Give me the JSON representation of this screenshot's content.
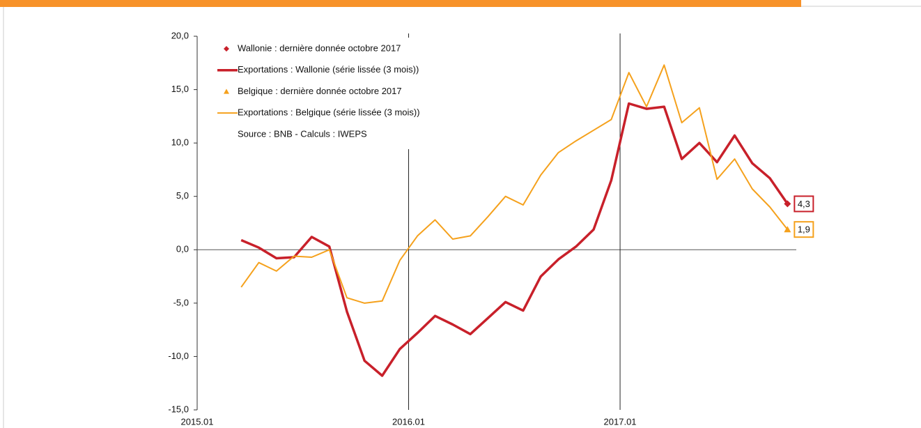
{
  "chart_data": {
    "type": "line",
    "categories": [
      "2015.01",
      null,
      null,
      null,
      null,
      null,
      null,
      null,
      null,
      null,
      null,
      null,
      "2016.01",
      null,
      null,
      null,
      null,
      null,
      null,
      null,
      null,
      null,
      null,
      null,
      "2017.01",
      null,
      null,
      null,
      null,
      null,
      null,
      null,
      null,
      null
    ],
    "series": [
      {
        "name": "Wallonie : dernière donnée octobre 2017",
        "color": "#c8202a",
        "marker": "diamond",
        "values": [
          null,
          null,
          null,
          null,
          null,
          null,
          null,
          null,
          null,
          null,
          null,
          null,
          null,
          null,
          null,
          null,
          null,
          null,
          null,
          null,
          null,
          null,
          null,
          null,
          null,
          null,
          null,
          null,
          null,
          null,
          null,
          null,
          null,
          4.3
        ],
        "value_labels": [
          null,
          null,
          null,
          null,
          null,
          null,
          null,
          null,
          null,
          null,
          null,
          null,
          null,
          null,
          null,
          null,
          null,
          null,
          null,
          null,
          null,
          null,
          null,
          null,
          null,
          null,
          null,
          null,
          null,
          null,
          null,
          null,
          null,
          "4,3"
        ]
      },
      {
        "name": "Exportations : Wallonie (série lissée (3 mois))",
        "color": "#c8202a",
        "width": 3.5,
        "values": [
          null,
          null,
          0.9,
          0.2,
          -0.8,
          -0.7,
          1.2,
          0.3,
          -5.8,
          -10.4,
          -11.8,
          -9.3,
          -7.8,
          -6.2,
          -7.0,
          -7.9,
          -6.4,
          -4.9,
          -5.7,
          -2.5,
          -0.9,
          0.3,
          1.9,
          6.5,
          13.7,
          13.2,
          13.4,
          8.5,
          10.0,
          8.2,
          10.7,
          8.1,
          6.7,
          4.3
        ]
      },
      {
        "name": "Belgique : dernière donnée octobre 2017",
        "color": "#f5a11c",
        "marker": "triangle",
        "values": [
          null,
          null,
          null,
          null,
          null,
          null,
          null,
          null,
          null,
          null,
          null,
          null,
          null,
          null,
          null,
          null,
          null,
          null,
          null,
          null,
          null,
          null,
          null,
          null,
          null,
          null,
          null,
          null,
          null,
          null,
          null,
          null,
          null,
          1.9
        ],
        "value_labels": [
          null,
          null,
          null,
          null,
          null,
          null,
          null,
          null,
          null,
          null,
          null,
          null,
          null,
          null,
          null,
          null,
          null,
          null,
          null,
          null,
          null,
          null,
          null,
          null,
          null,
          null,
          null,
          null,
          null,
          null,
          null,
          null,
          null,
          "1,9"
        ]
      },
      {
        "name": "Exportations : Belgique (série lissée (3 mois))",
        "color": "#f5a11c",
        "width": 2,
        "values": [
          null,
          null,
          -3.5,
          -1.2,
          -2.0,
          -0.6,
          -0.7,
          0.0,
          -4.5,
          -5.0,
          -4.8,
          -1.0,
          1.3,
          2.8,
          1.0,
          1.3,
          3.1,
          5.0,
          4.2,
          7.0,
          9.1,
          10.2,
          11.2,
          12.2,
          16.6,
          13.4,
          17.3,
          11.9,
          13.3,
          6.6,
          8.5,
          5.7,
          4.0,
          1.9
        ]
      }
    ],
    "source": "Source : BNB - Calculs : IWEPS",
    "ylim": [
      -15,
      20
    ],
    "yticks": [
      {
        "value": -15,
        "label": "-15,0"
      },
      {
        "value": -10,
        "label": "-10,0"
      },
      {
        "value": -5,
        "label": "-5,0"
      },
      {
        "value": 0,
        "label": "0,0"
      },
      {
        "value": 5,
        "label": "5,0"
      },
      {
        "value": 10,
        "label": "10,0"
      },
      {
        "value": 15,
        "label": "15,0"
      },
      {
        "value": 20,
        "label": "20,0"
      }
    ]
  }
}
